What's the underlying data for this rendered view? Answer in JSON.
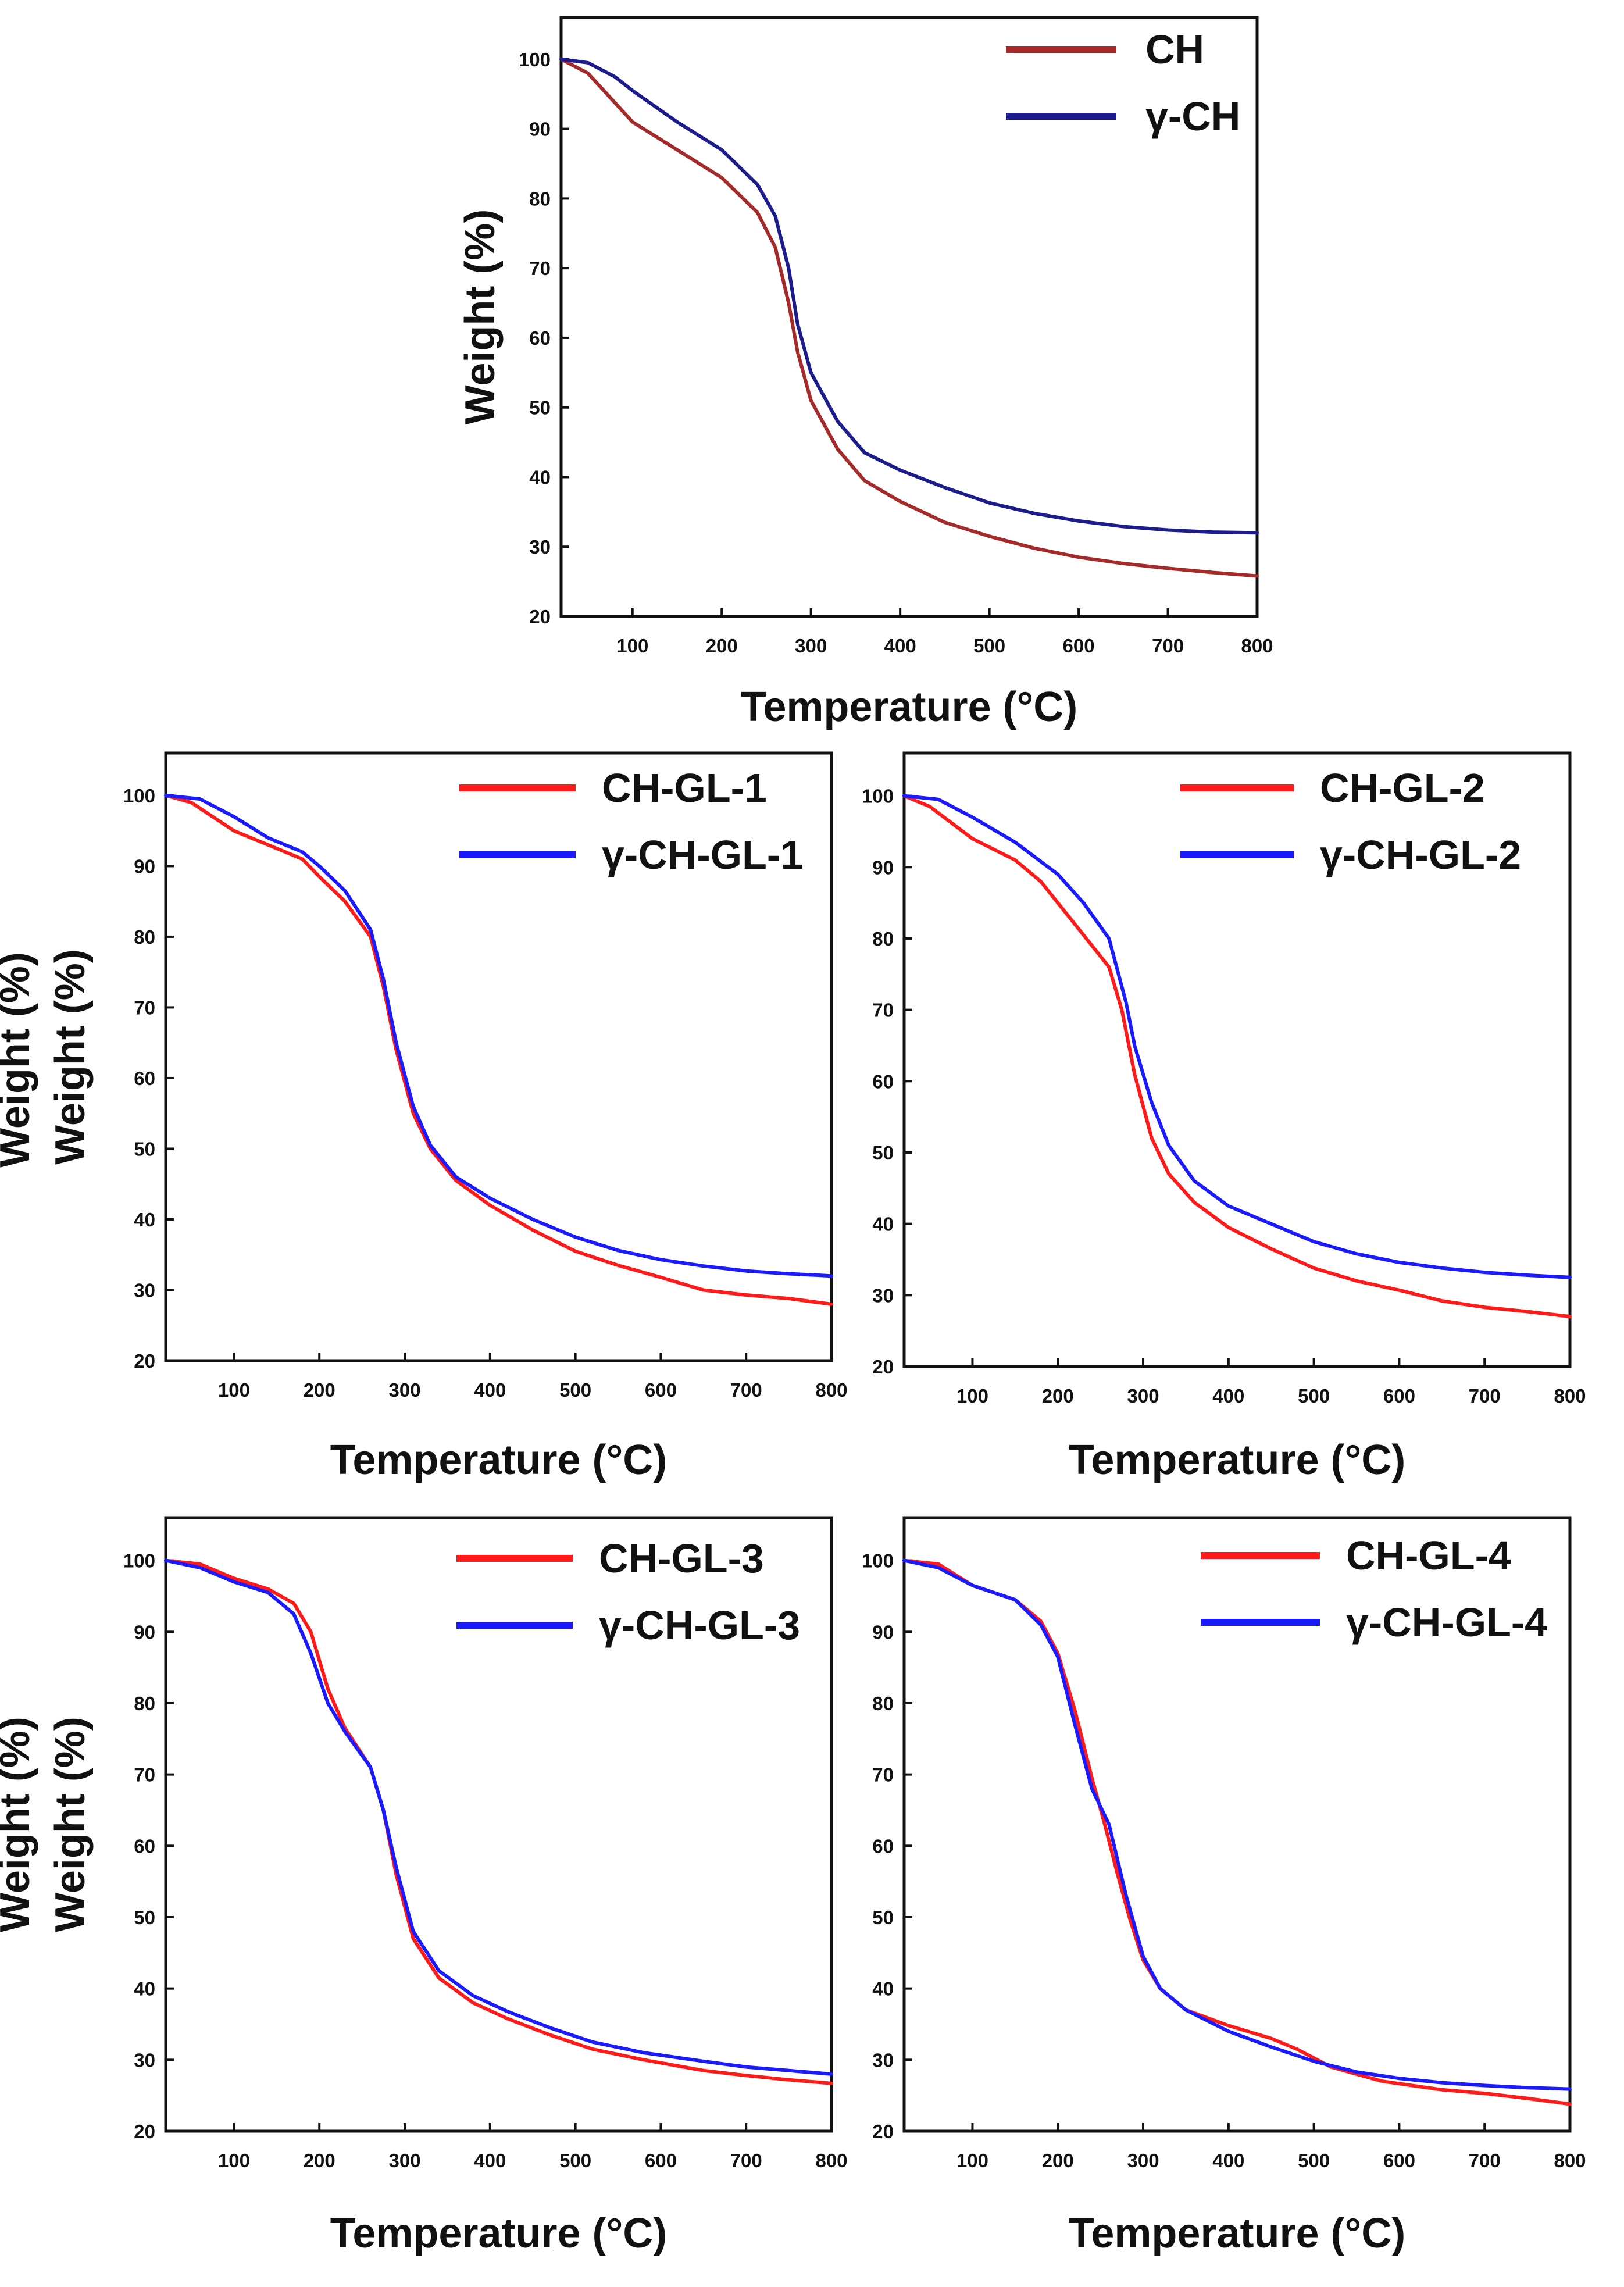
{
  "colors": {
    "CH": "#a52a2a",
    "gamma_CH": "#1c1c8c",
    "red": "#ff1a1a",
    "blue": "#1a1aff"
  },
  "chart_data": [
    {
      "type": "line",
      "xlabel": "Temperature (°C)",
      "ylabel": "Weight (%)",
      "xlim": [
        20,
        800
      ],
      "ylim": [
        20,
        106
      ],
      "xticks": [
        100,
        200,
        300,
        400,
        500,
        600,
        700,
        800
      ],
      "yticks": [
        20,
        30,
        40,
        50,
        60,
        70,
        80,
        90,
        100
      ],
      "series": [
        {
          "name": "CH",
          "color_key": "CH",
          "x": [
            20,
            50,
            100,
            150,
            200,
            240,
            260,
            275,
            285,
            300,
            330,
            360,
            400,
            450,
            500,
            550,
            600,
            650,
            700,
            750,
            800
          ],
          "y": [
            100,
            98,
            91,
            87,
            83,
            78,
            73,
            65,
            58,
            51,
            44,
            39.5,
            36.5,
            33.5,
            31.5,
            29.8,
            28.5,
            27.6,
            26.9,
            26.3,
            25.8
          ]
        },
        {
          "name": "γ-CH",
          "color_key": "gamma_CH",
          "x": [
            20,
            50,
            80,
            100,
            150,
            200,
            240,
            260,
            275,
            285,
            300,
            330,
            360,
            400,
            450,
            500,
            550,
            600,
            650,
            700,
            750,
            800
          ],
          "y": [
            100,
            99.5,
            97.5,
            95.5,
            91,
            87,
            82,
            77.5,
            70,
            62,
            55,
            48,
            43.5,
            41,
            38.5,
            36.3,
            34.8,
            33.7,
            32.9,
            32.4,
            32.1,
            32
          ]
        }
      ]
    },
    {
      "type": "line",
      "xlabel": "Temperature (°C)",
      "ylabel": "Weight (%)",
      "xlim": [
        20,
        800
      ],
      "ylim": [
        20,
        106
      ],
      "xticks": [
        100,
        200,
        300,
        400,
        500,
        600,
        700,
        800
      ],
      "yticks": [
        20,
        30,
        40,
        50,
        60,
        70,
        80,
        90,
        100
      ],
      "series": [
        {
          "name": "CH-GL-1",
          "color_key": "red",
          "x": [
            20,
            50,
            100,
            150,
            180,
            200,
            230,
            260,
            275,
            290,
            310,
            330,
            360,
            400,
            450,
            500,
            550,
            600,
            650,
            700,
            750,
            800
          ],
          "y": [
            100,
            99,
            95,
            92.5,
            91,
            88.5,
            85,
            80,
            73,
            64,
            55,
            50,
            45.5,
            42,
            38.5,
            35.5,
            33.5,
            31.8,
            30,
            29.3,
            28.8,
            28
          ]
        },
        {
          "name": "γ-CH-GL-1",
          "color_key": "blue",
          "x": [
            20,
            60,
            100,
            140,
            180,
            200,
            230,
            260,
            275,
            290,
            310,
            330,
            360,
            400,
            450,
            500,
            550,
            600,
            650,
            700,
            750,
            800
          ],
          "y": [
            100,
            99.5,
            97,
            94,
            92,
            90,
            86.5,
            81,
            74,
            65,
            56,
            50.5,
            46,
            43,
            40,
            37.5,
            35.6,
            34.3,
            33.4,
            32.7,
            32.3,
            32
          ]
        }
      ]
    },
    {
      "type": "line",
      "xlabel": "Temperature (°C)",
      "ylabel": "Weight (%)",
      "xlim": [
        20,
        800
      ],
      "ylim": [
        20,
        106
      ],
      "xticks": [
        100,
        200,
        300,
        400,
        500,
        600,
        700,
        800
      ],
      "yticks": [
        20,
        30,
        40,
        50,
        60,
        70,
        80,
        90,
        100
      ],
      "series": [
        {
          "name": "CH-GL-2",
          "color_key": "red",
          "x": [
            20,
            50,
            100,
            150,
            180,
            200,
            230,
            260,
            275,
            290,
            310,
            330,
            360,
            400,
            450,
            500,
            550,
            600,
            650,
            700,
            750,
            800
          ],
          "y": [
            100,
            98.5,
            94,
            91,
            88,
            85,
            80.5,
            76,
            70,
            61,
            52,
            47,
            43,
            39.5,
            36.5,
            33.8,
            32,
            30.7,
            29.2,
            28.3,
            27.7,
            27
          ]
        },
        {
          "name": "γ-CH-GL-2",
          "color_key": "blue",
          "x": [
            20,
            60,
            100,
            150,
            200,
            230,
            260,
            280,
            290,
            310,
            330,
            360,
            400,
            450,
            500,
            550,
            600,
            650,
            700,
            750,
            800
          ],
          "y": [
            100,
            99.5,
            97,
            93.5,
            89,
            85,
            80,
            71,
            65,
            57,
            51,
            46,
            42.5,
            40,
            37.5,
            35.8,
            34.6,
            33.8,
            33.2,
            32.8,
            32.5
          ]
        }
      ]
    },
    {
      "type": "line",
      "xlabel": "Temperature (°C)",
      "ylabel": "Weight (%)",
      "xlim": [
        20,
        800
      ],
      "ylim": [
        20,
        106
      ],
      "xticks": [
        100,
        200,
        300,
        400,
        500,
        600,
        700,
        800
      ],
      "yticks": [
        20,
        30,
        40,
        50,
        60,
        70,
        80,
        90,
        100
      ],
      "series": [
        {
          "name": "CH-GL-3",
          "color_key": "red",
          "x": [
            20,
            60,
            100,
            140,
            170,
            190,
            210,
            230,
            260,
            275,
            290,
            310,
            340,
            380,
            420,
            470,
            520,
            580,
            650,
            700,
            750,
            800
          ],
          "y": [
            100,
            99.5,
            97.5,
            96,
            94,
            90,
            82,
            76.5,
            71,
            65,
            56,
            47,
            41.5,
            38,
            35.8,
            33.5,
            31.5,
            30,
            28.5,
            27.8,
            27.2,
            26.7
          ]
        },
        {
          "name": "γ-CH-GL-3",
          "color_key": "blue",
          "x": [
            20,
            60,
            100,
            140,
            170,
            190,
            210,
            230,
            260,
            275,
            290,
            310,
            340,
            380,
            420,
            470,
            520,
            580,
            650,
            700,
            750,
            800
          ],
          "y": [
            100,
            99,
            97,
            95.5,
            92.5,
            87,
            80,
            76,
            71,
            65,
            57,
            48,
            42.5,
            39,
            36.8,
            34.5,
            32.5,
            31,
            29.8,
            29,
            28.5,
            28
          ]
        }
      ]
    },
    {
      "type": "line",
      "xlabel": "Temperature (°C)",
      "ylabel": "Weight (%)",
      "xlim": [
        20,
        800
      ],
      "ylim": [
        20,
        106
      ],
      "xticks": [
        100,
        200,
        300,
        400,
        500,
        600,
        700,
        800
      ],
      "yticks": [
        20,
        30,
        40,
        50,
        60,
        70,
        80,
        90,
        100
      ],
      "series": [
        {
          "name": "CH-GL-4",
          "color_key": "red",
          "x": [
            20,
            60,
            100,
            150,
            180,
            200,
            220,
            240,
            255,
            270,
            285,
            300,
            320,
            350,
            400,
            450,
            480,
            520,
            580,
            650,
            700,
            750,
            800
          ],
          "y": [
            100,
            99.5,
            96.5,
            94.5,
            91.5,
            87,
            79,
            69.5,
            63,
            56,
            49.5,
            44,
            40,
            37,
            34.8,
            33,
            31.5,
            29,
            27,
            25.8,
            25.3,
            24.6,
            23.8
          ]
        },
        {
          "name": "γ-CH-GL-4",
          "color_key": "blue",
          "x": [
            20,
            60,
            100,
            150,
            180,
            200,
            220,
            240,
            260,
            280,
            300,
            320,
            350,
            400,
            450,
            500,
            550,
            600,
            650,
            700,
            750,
            800
          ],
          "y": [
            100,
            99,
            96.5,
            94.5,
            91,
            86.5,
            77,
            68,
            63,
            53,
            44.5,
            40,
            37,
            34,
            31.8,
            29.8,
            28.3,
            27.4,
            26.8,
            26.4,
            26.1,
            25.9
          ]
        }
      ]
    }
  ]
}
